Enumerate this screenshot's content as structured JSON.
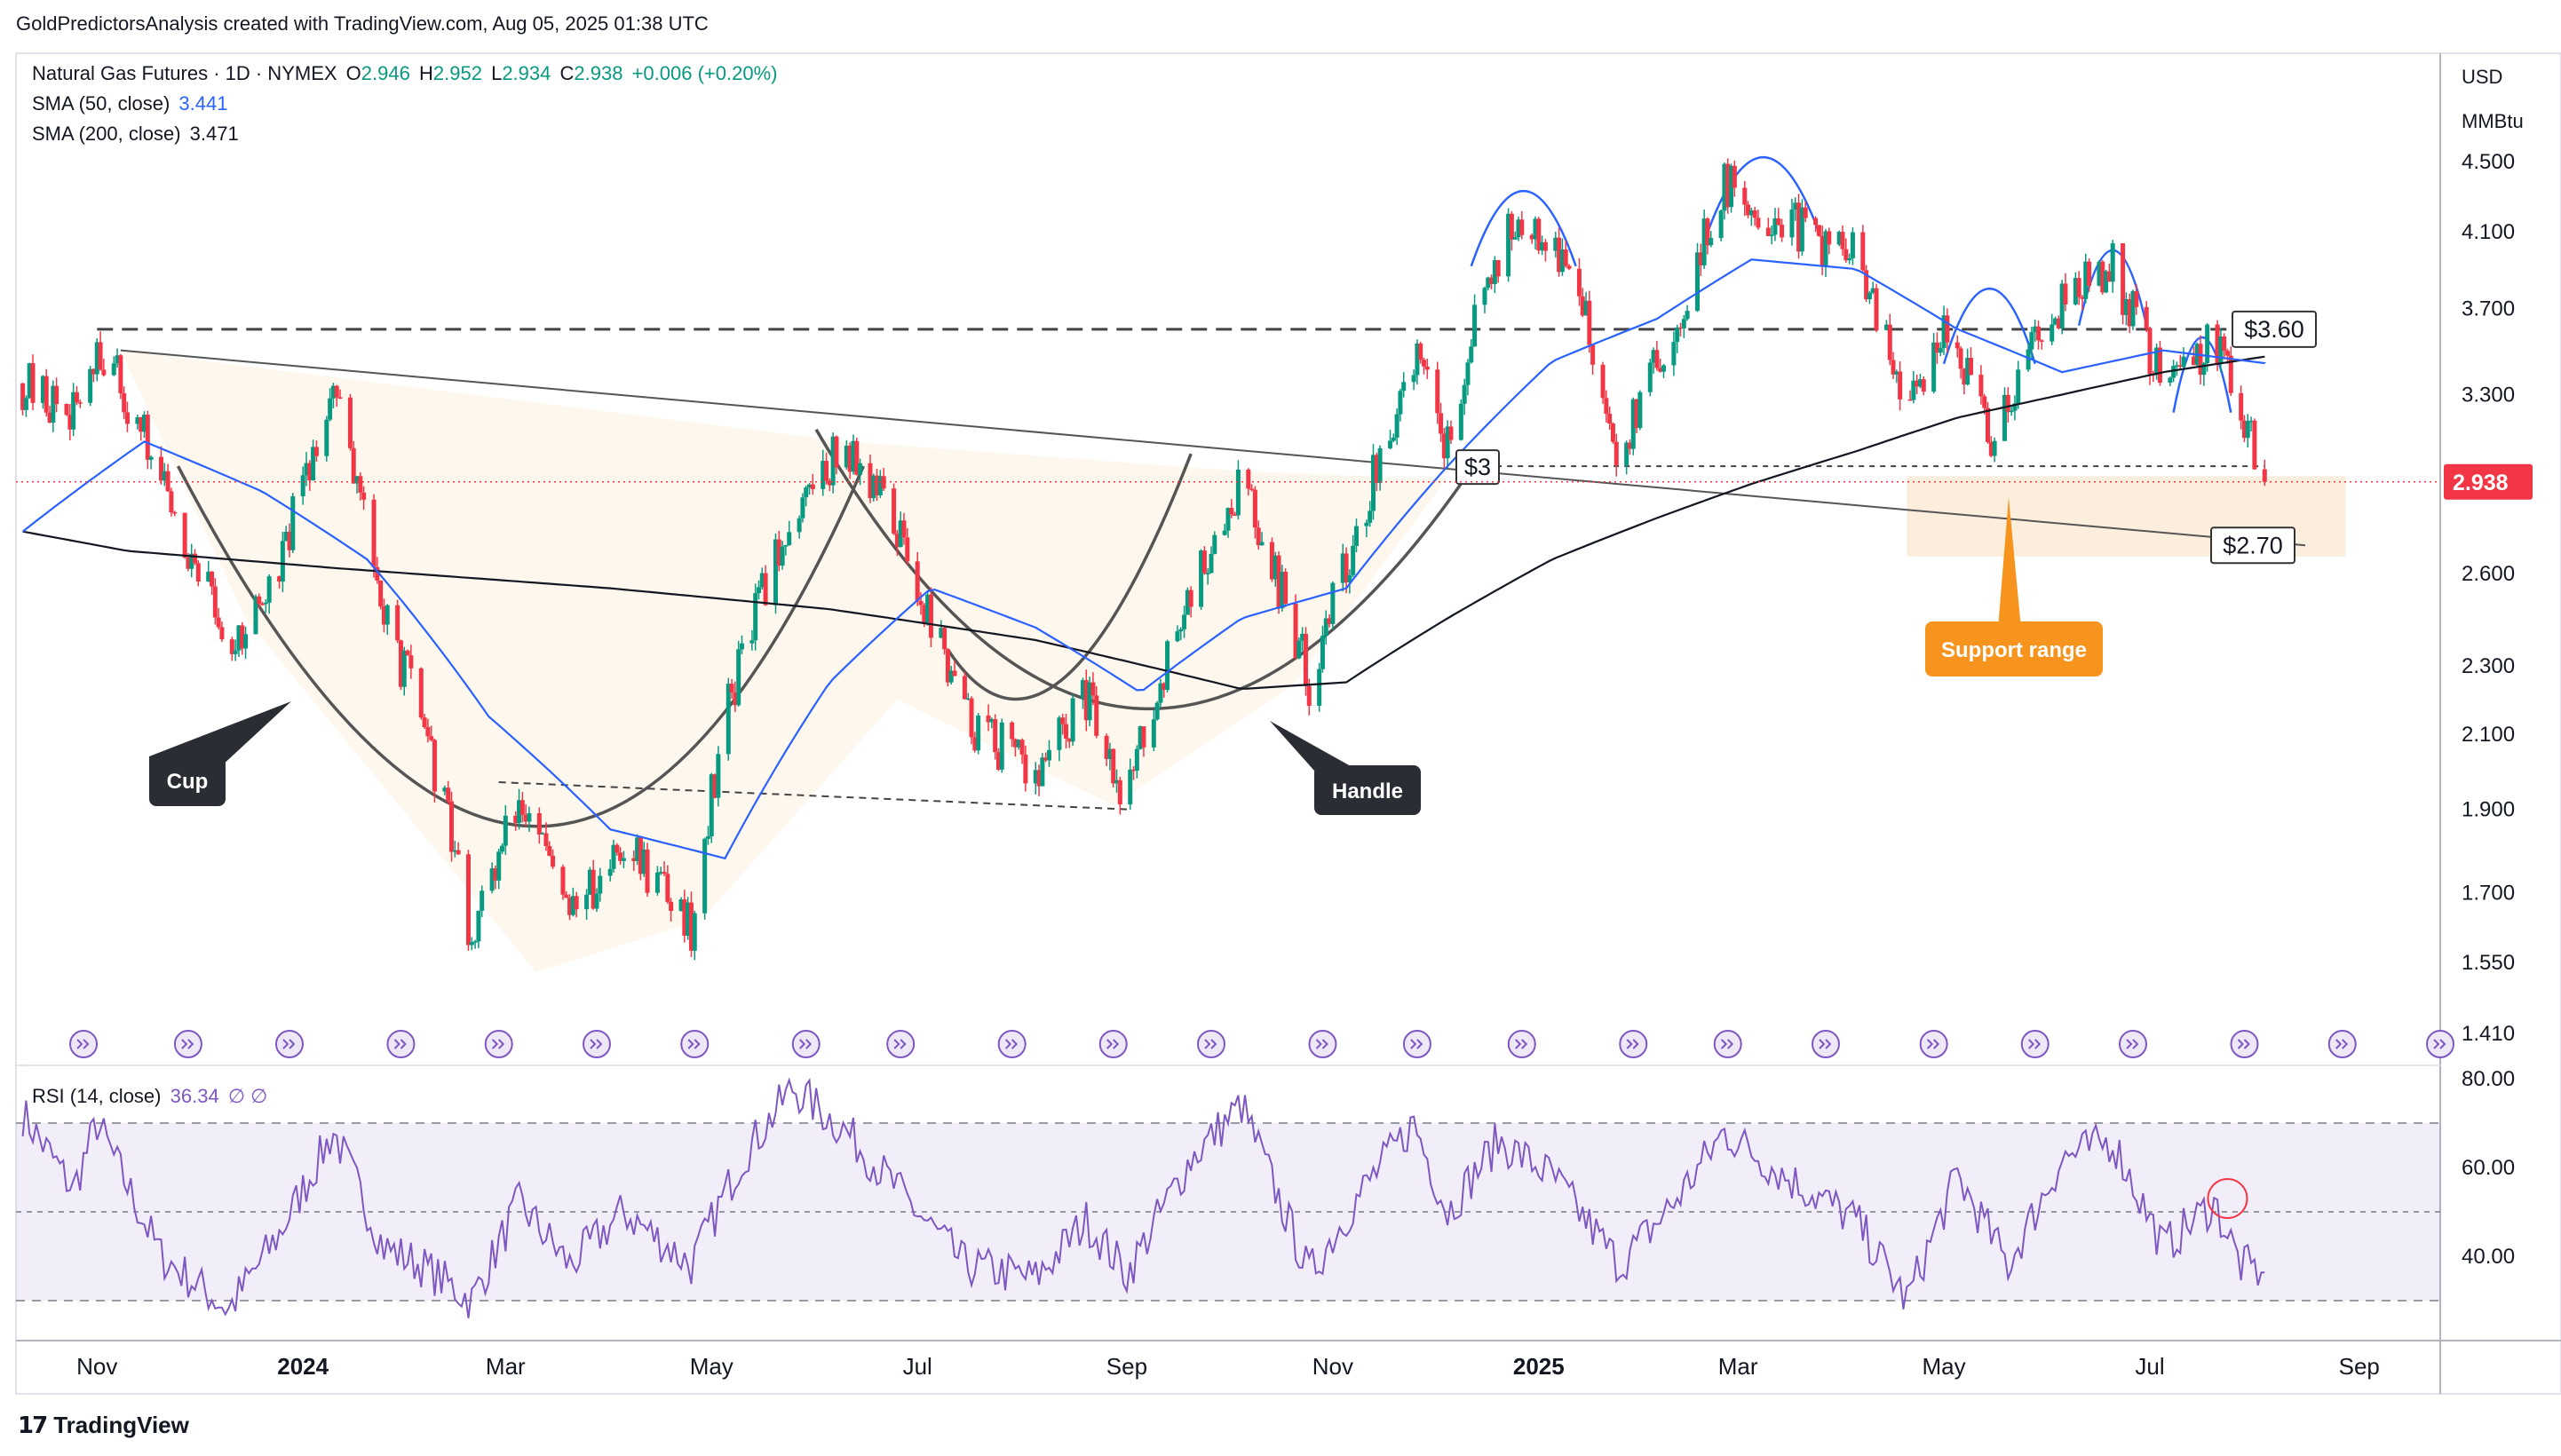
{
  "header": {
    "publisher_line": "GoldPredictorsAnalysis created with TradingView.com, Aug 05, 2025 01:38 UTC"
  },
  "footer": {
    "brand": "TradingView"
  },
  "legend": {
    "symbol_line": "Natural Gas Futures · 1D · NYMEX",
    "o_label": "O",
    "o": "2.946",
    "h_label": "H",
    "h": "2.952",
    "l_label": "L",
    "l": "2.934",
    "c_label": "C",
    "c": "2.938",
    "change": "+0.006 (+0.20%)",
    "sma50_label": "SMA (50, close)",
    "sma50": "3.441",
    "sma200_label": "SMA (200, close)",
    "sma200": "3.471"
  },
  "price_axis": {
    "currency": "USD",
    "unit": "MMBtu",
    "last_price": "2.938"
  },
  "rsi": {
    "label": "RSI (14, close)",
    "value": "36.34",
    "extra": "∅ ∅"
  },
  "annotations": {
    "cup": "Cup",
    "handle": "Handle",
    "support": "Support range",
    "level_360": "$3.60",
    "level_3": "$3",
    "level_270": "$2.70"
  },
  "colors": {
    "up": "#089981",
    "down": "#f23645",
    "sma50": "#2962ff",
    "sma200": "#131722",
    "support": "#f7941d",
    "rsi": "#7e57c2"
  },
  "chart_data": {
    "type": "candlestick",
    "title": "Natural Gas Futures · 1D · NYMEX",
    "y_scale": "log",
    "y_ticks": [
      4.5,
      4.1,
      3.7,
      3.3,
      2.938,
      2.6,
      2.3,
      2.1,
      1.9,
      1.7,
      1.55,
      1.41
    ],
    "y_tick_labels": [
      "4.500",
      "4.100",
      "3.700",
      "3.300",
      "2.938",
      "2.600",
      "2.300",
      "2.100",
      "1.900",
      "1.700",
      "1.550",
      "1.410"
    ],
    "x_ticks": [
      "Nov",
      "2024",
      "Mar",
      "May",
      "Jul",
      "Sep",
      "Nov",
      "2025",
      "Mar",
      "May",
      "Jul",
      "Sep"
    ],
    "price_path": [
      [
        "2023-10-10",
        3.35
      ],
      [
        "2023-10-25",
        3.2
      ],
      [
        "2023-11-01",
        3.55
      ],
      [
        "2023-11-20",
        2.95
      ],
      [
        "2023-12-10",
        2.35
      ],
      [
        "2023-12-25",
        2.6
      ],
      [
        "2024-01-10",
        3.35
      ],
      [
        "2024-01-25",
        2.45
      ],
      [
        "2024-02-05",
        2.15
      ],
      [
        "2024-02-20",
        1.6
      ],
      [
        "2024-03-05",
        1.92
      ],
      [
        "2024-03-20",
        1.65
      ],
      [
        "2024-04-05",
        1.82
      ],
      [
        "2024-04-25",
        1.63
      ],
      [
        "2024-05-05",
        2.15
      ],
      [
        "2024-05-25",
        2.82
      ],
      [
        "2024-06-10",
        3.1
      ],
      [
        "2024-06-25",
        2.75
      ],
      [
        "2024-07-15",
        2.15
      ],
      [
        "2024-08-05",
        1.98
      ],
      [
        "2024-08-20",
        2.2
      ],
      [
        "2024-09-01",
        1.93
      ],
      [
        "2024-09-20",
        2.55
      ],
      [
        "2024-10-05",
        2.95
      ],
      [
        "2024-10-25",
        2.25
      ],
      [
        "2024-11-10",
        2.82
      ],
      [
        "2024-11-25",
        3.5
      ],
      [
        "2024-12-05",
        3.08
      ],
      [
        "2024-12-15",
        3.8
      ],
      [
        "2024-12-28",
        4.25
      ],
      [
        "2025-01-10",
        3.9
      ],
      [
        "2025-01-25",
        3.05
      ],
      [
        "2025-02-10",
        3.6
      ],
      [
        "2025-02-25",
        4.35
      ],
      [
        "2025-03-10",
        4.2
      ],
      [
        "2025-03-25",
        4.05
      ],
      [
        "2025-04-05",
        3.95
      ],
      [
        "2025-04-20",
        3.2
      ],
      [
        "2025-05-01",
        3.65
      ],
      [
        "2025-05-15",
        3.1
      ],
      [
        "2025-06-01",
        3.7
      ],
      [
        "2025-06-20",
        3.9
      ],
      [
        "2025-07-05",
        3.35
      ],
      [
        "2025-07-20",
        3.55
      ],
      [
        "2025-08-04",
        2.938
      ]
    ],
    "sma50_path": [
      [
        "2023-10-10",
        2.75
      ],
      [
        "2023-11-15",
        3.1
      ],
      [
        "2023-12-20",
        2.9
      ],
      [
        "2024-01-20",
        2.65
      ],
      [
        "2024-02-25",
        2.15
      ],
      [
        "2024-04-01",
        1.85
      ],
      [
        "2024-05-05",
        1.78
      ],
      [
        "2024-06-05",
        2.25
      ],
      [
        "2024-07-05",
        2.55
      ],
      [
        "2024-08-05",
        2.42
      ],
      [
        "2024-09-05",
        2.22
      ],
      [
        "2024-10-05",
        2.45
      ],
      [
        "2024-11-05",
        2.55
      ],
      [
        "2024-12-05",
        3.0
      ],
      [
        "2025-01-05",
        3.45
      ],
      [
        "2025-02-05",
        3.65
      ],
      [
        "2025-03-05",
        3.95
      ],
      [
        "2025-04-05",
        3.9
      ],
      [
        "2025-05-05",
        3.6
      ],
      [
        "2025-06-05",
        3.4
      ],
      [
        "2025-07-05",
        3.5
      ],
      [
        "2025-08-04",
        3.441
      ]
    ],
    "sma200_path": [
      [
        "2023-10-10",
        2.75
      ],
      [
        "2023-11-10",
        2.68
      ],
      [
        "2024-01-10",
        2.62
      ],
      [
        "2024-04-01",
        2.55
      ],
      [
        "2024-06-05",
        2.48
      ],
      [
        "2024-08-05",
        2.38
      ],
      [
        "2024-10-05",
        2.23
      ],
      [
        "2024-11-05",
        2.25
      ],
      [
        "2024-12-05",
        2.45
      ],
      [
        "2025-01-05",
        2.65
      ],
      [
        "2025-02-05",
        2.8
      ],
      [
        "2025-03-05",
        2.93
      ],
      [
        "2025-04-05",
        3.06
      ],
      [
        "2025-05-05",
        3.2
      ],
      [
        "2025-06-05",
        3.3
      ],
      [
        "2025-07-05",
        3.4
      ],
      [
        "2025-08-04",
        3.471
      ]
    ],
    "levels": [
      {
        "label": "$3.60",
        "price": 3.6
      },
      {
        "label": "$3",
        "price": 3.0
      },
      {
        "label": "$2.70",
        "price": 2.7
      }
    ],
    "support_range": {
      "label": "Support range",
      "from": 2.66,
      "to": 2.96
    },
    "rsi": {
      "label": "RSI (14, close)",
      "ylim": [
        20,
        80
      ],
      "y_ticks": [
        80,
        60,
        40
      ],
      "bands": [
        30,
        50,
        70
      ],
      "last": 36.34,
      "path": [
        [
          "2023-10-10",
          72
        ],
        [
          "2023-10-25",
          55
        ],
        [
          "2023-11-01",
          70
        ],
        [
          "2023-11-20",
          40
        ],
        [
          "2023-12-10",
          28
        ],
        [
          "2023-12-25",
          45
        ],
        [
          "2024-01-10",
          68
        ],
        [
          "2024-01-25",
          42
        ],
        [
          "2024-02-05",
          38
        ],
        [
          "2024-02-20",
          30
        ],
        [
          "2024-03-05",
          52
        ],
        [
          "2024-03-20",
          38
        ],
        [
          "2024-04-05",
          50
        ],
        [
          "2024-04-25",
          38
        ],
        [
          "2024-05-10",
          62
        ],
        [
          "2024-05-25",
          78
        ],
        [
          "2024-06-10",
          68
        ],
        [
          "2024-06-25",
          55
        ],
        [
          "2024-07-15",
          38
        ],
        [
          "2024-08-05",
          35
        ],
        [
          "2024-08-20",
          48
        ],
        [
          "2024-09-01",
          36
        ],
        [
          "2024-09-20",
          62
        ],
        [
          "2024-10-05",
          74
        ],
        [
          "2024-10-25",
          36
        ],
        [
          "2024-11-10",
          55
        ],
        [
          "2024-11-25",
          70
        ],
        [
          "2024-12-05",
          50
        ],
        [
          "2024-12-20",
          66
        ],
        [
          "2025-01-05",
          58
        ],
        [
          "2025-01-25",
          38
        ],
        [
          "2025-02-10",
          52
        ],
        [
          "2025-02-25",
          68
        ],
        [
          "2025-03-15",
          58
        ],
        [
          "2025-04-05",
          48
        ],
        [
          "2025-04-20",
          30
        ],
        [
          "2025-05-05",
          58
        ],
        [
          "2025-05-20",
          38
        ],
        [
          "2025-06-05",
          62
        ],
        [
          "2025-06-20",
          66
        ],
        [
          "2025-07-05",
          42
        ],
        [
          "2025-07-20",
          52
        ],
        [
          "2025-07-28",
          38
        ],
        [
          "2025-08-04",
          36.34
        ]
      ]
    }
  }
}
